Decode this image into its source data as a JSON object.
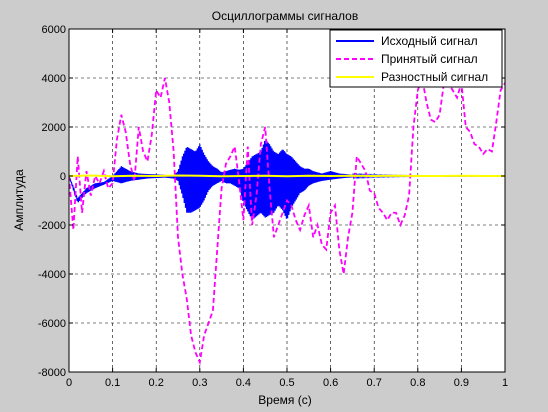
{
  "chart_data": {
    "type": "line",
    "title": "Осциллограммы сигналов",
    "xlabel": "Время (с)",
    "ylabel": "Амплитуда",
    "xlim": [
      0,
      1
    ],
    "ylim": [
      -8000,
      6000
    ],
    "x_ticks": [
      0,
      0.1,
      0.2,
      0.3,
      0.4,
      0.5,
      0.6,
      0.7,
      0.8,
      0.9,
      1
    ],
    "x_tick_labels": [
      "0",
      "0.1",
      "0.2",
      "0.3",
      "0.4",
      "0.5",
      "0.6",
      "0.7",
      "0.8",
      "0.9",
      "1"
    ],
    "y_ticks": [
      -8000,
      -6000,
      -4000,
      -2000,
      0,
      2000,
      4000,
      6000
    ],
    "y_tick_labels": [
      "-8000",
      "-6000",
      "-4000",
      "-2000",
      "0",
      "2000",
      "4000",
      "6000"
    ],
    "grid": true,
    "legend_position": "top-right",
    "series": [
      {
        "name": "Исходный сигнал",
        "color": "#0000ff",
        "style": "solid",
        "x": [
          0,
          0.02,
          0.04,
          0.06,
          0.08,
          0.1,
          0.12,
          0.14,
          0.16,
          0.18,
          0.2,
          0.22,
          0.24,
          0.25,
          0.26,
          0.27,
          0.28,
          0.29,
          0.3,
          0.31,
          0.32,
          0.33,
          0.34,
          0.35,
          0.36,
          0.37,
          0.38,
          0.39,
          0.4,
          0.42,
          0.44,
          0.45,
          0.46,
          0.47,
          0.48,
          0.49,
          0.5,
          0.51,
          0.52,
          0.53,
          0.54,
          0.55,
          0.56,
          0.58,
          0.6,
          0.62,
          0.65,
          0.7,
          0.8,
          0.9,
          1.0
        ],
        "y": [
          0,
          -900,
          -500,
          -300,
          -250,
          0,
          400,
          200,
          100,
          80,
          60,
          40,
          30,
          200,
          800,
          1200,
          1100,
          1000,
          1300,
          900,
          600,
          400,
          300,
          150,
          200,
          250,
          300,
          250,
          300,
          800,
          1000,
          1500,
          1300,
          1000,
          900,
          1100,
          900,
          800,
          600,
          400,
          300,
          300,
          200,
          100,
          200,
          100,
          50,
          30,
          10,
          10,
          0
        ],
        "envelope_low": [
          0,
          -1100,
          -700,
          -500,
          -350,
          -200,
          -300,
          -200,
          -150,
          -100,
          -80,
          -60,
          -100,
          -200,
          -800,
          -1500,
          -1500,
          -1400,
          -1300,
          -1000,
          -600,
          -400,
          -300,
          -200,
          -300,
          -300,
          -400,
          -500,
          -1100,
          -1800,
          -1500,
          -1700,
          -1600,
          -1500,
          -1200,
          -1400,
          -1800,
          -1300,
          -1000,
          -700,
          -600,
          -400,
          -300,
          -200,
          -150,
          -100,
          -50,
          -30,
          -10,
          -10,
          0
        ]
      },
      {
        "name": "Принятый сигнал",
        "color": "#ff00ff",
        "style": "dashed",
        "x": [
          0,
          0.01,
          0.02,
          0.03,
          0.04,
          0.05,
          0.06,
          0.07,
          0.08,
          0.09,
          0.1,
          0.11,
          0.12,
          0.13,
          0.14,
          0.15,
          0.16,
          0.17,
          0.18,
          0.19,
          0.2,
          0.21,
          0.22,
          0.23,
          0.24,
          0.25,
          0.26,
          0.27,
          0.28,
          0.29,
          0.3,
          0.31,
          0.32,
          0.33,
          0.34,
          0.35,
          0.36,
          0.37,
          0.38,
          0.39,
          0.4,
          0.41,
          0.42,
          0.43,
          0.44,
          0.45,
          0.46,
          0.47,
          0.48,
          0.49,
          0.5,
          0.51,
          0.52,
          0.53,
          0.54,
          0.55,
          0.56,
          0.57,
          0.58,
          0.59,
          0.6,
          0.61,
          0.62,
          0.63,
          0.64,
          0.65,
          0.66,
          0.67,
          0.68,
          0.69,
          0.7,
          0.71,
          0.72,
          0.73,
          0.74,
          0.75,
          0.76,
          0.77,
          0.78,
          0.79,
          0.8,
          0.81,
          0.82,
          0.83,
          0.84,
          0.85,
          0.86,
          0.87,
          0.88,
          0.89,
          0.9,
          0.91,
          0.92,
          0.93,
          0.94,
          0.95,
          0.96,
          0.97,
          0.98,
          0.99,
          1.0
        ],
        "y": [
          0,
          -2200,
          800,
          -1500,
          200,
          -800,
          0,
          -300,
          200,
          -500,
          -300,
          1500,
          2500,
          1800,
          500,
          -200,
          2000,
          1000,
          600,
          1700,
          3500,
          3200,
          4000,
          3000,
          1000,
          -2500,
          -4000,
          -5000,
          -6500,
          -7200,
          -7600,
          -6500,
          -6000,
          -5500,
          -3000,
          -500,
          500,
          800,
          1200,
          -200,
          -1800,
          1200,
          -2000,
          -800,
          1300,
          2000,
          -500,
          -2500,
          -2000,
          -1500,
          -1000,
          -1200,
          -1800,
          -2200,
          -1600,
          -1200,
          -2500,
          -2000,
          -2800,
          -3000,
          -1500,
          -1200,
          -3000,
          -4000,
          -2500,
          -1500,
          800,
          500,
          200,
          -600,
          -700,
          -1300,
          -1500,
          -1800,
          -1500,
          -1500,
          -2000,
          -1600,
          -800,
          2000,
          3500,
          4000,
          3000,
          2300,
          2200,
          2500,
          3800,
          3800,
          3500,
          3200,
          3800,
          2000,
          1800,
          1300,
          1200,
          900,
          1100,
          1000,
          2200,
          3500,
          3800
        ]
      },
      {
        "name": "Разностный сигнал",
        "color": "#ffff00",
        "style": "solid",
        "x": [
          0,
          0.05,
          0.1,
          0.15,
          0.2,
          0.25,
          0.3,
          0.35,
          0.4,
          0.45,
          0.5,
          0.55,
          0.6,
          0.65,
          0.7,
          0.75,
          0.8,
          0.85,
          0.9,
          0.95,
          1.0
        ],
        "y": [
          0,
          20,
          -10,
          10,
          0,
          20,
          10,
          -10,
          0,
          10,
          -10,
          10,
          0,
          10,
          0,
          10,
          0,
          0,
          10,
          0,
          0
        ]
      }
    ]
  }
}
